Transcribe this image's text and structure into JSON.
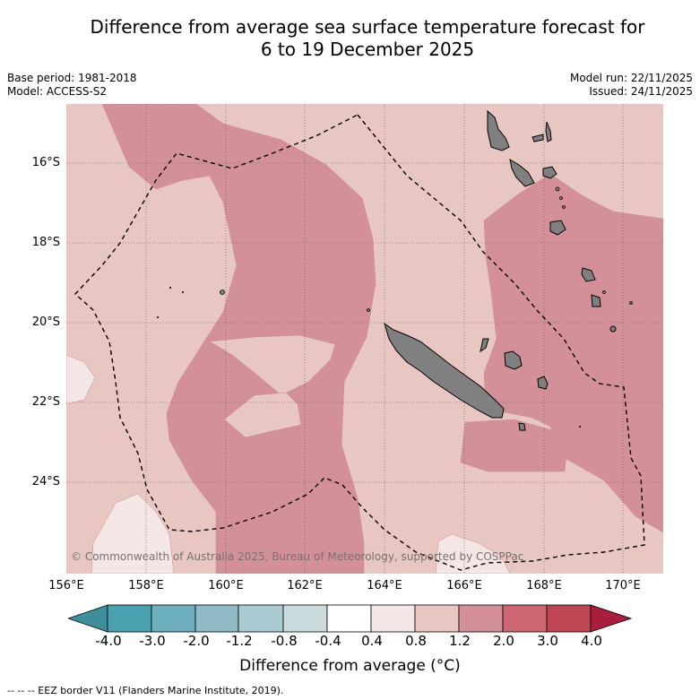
{
  "title_line1": "Difference from average sea surface temperature forecast for",
  "title_line2": "6 to 19 December 2025",
  "base_period": "Base period: 1981-2018",
  "model": "Model: ACCESS-S2",
  "model_run": "Model run: 22/11/2025",
  "issued": "Issued: 24/11/2025",
  "lat_labels": [
    "16°S",
    "18°S",
    "20°S",
    "22°S",
    "24°S"
  ],
  "lon_labels": [
    "156°E",
    "158°E",
    "160°E",
    "162°E",
    "164°E",
    "166°E",
    "168°E",
    "170°E"
  ],
  "colorbar": {
    "ticks": [
      "-4.0",
      "-3.0",
      "-2.0",
      "-1.2",
      "-0.8",
      "-0.4",
      "0.4",
      "0.8",
      "1.2",
      "2.0",
      "3.0",
      "4.0"
    ],
    "colors": [
      "#3d8f9c",
      "#4aa2b1",
      "#6fb0bf",
      "#8fbac6",
      "#aacbd1",
      "#cadbdd",
      "#ffffff",
      "#f5e6e6",
      "#e8c6c2",
      "#d49099",
      "#cc6772",
      "#bf4553",
      "#a91d3d"
    ],
    "label": "Difference from average (°C)"
  },
  "copyright": "© Commonwealth of Australia 2025, Bureau of Meteorology, supported by COSPPac",
  "footnote": "-- -- -- EEZ border V11 (Flanders Marine Institute, 2019).",
  "map_colors": {
    "anomaly_0_4_to_0_8": "#f5e6e6",
    "anomaly_0_8_to_1_2": "#e8c6c2",
    "anomaly_1_2_to_2_0": "#d49099",
    "land": "#808080"
  }
}
